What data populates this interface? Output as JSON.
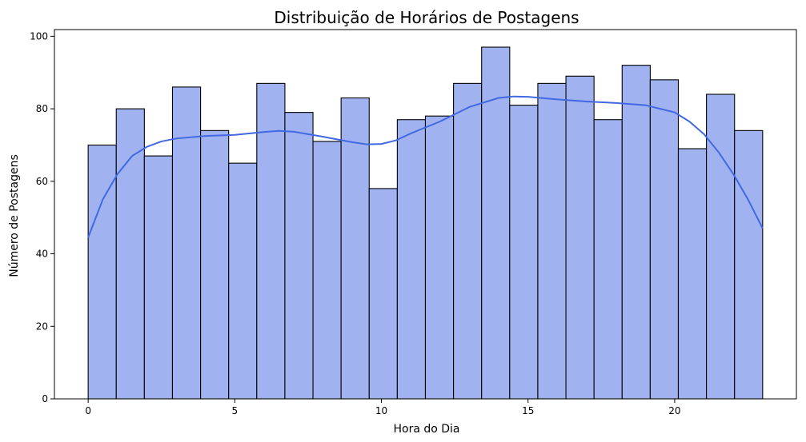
{
  "chart_data": {
    "type": "bar",
    "title": "Distribuição de Horários de Postagens",
    "xlabel": "Hora do Dia",
    "ylabel": "Número de Postagens",
    "xlim": [
      -1.15,
      24.15
    ],
    "ylim": [
      0,
      101.85
    ],
    "bin_width": 0.9583,
    "bin_start": 0,
    "bins": 24,
    "values": [
      70,
      80,
      67,
      86,
      74,
      65,
      87,
      79,
      71,
      83,
      58,
      77,
      78,
      87,
      97,
      81,
      87,
      89,
      77,
      92,
      88,
      69,
      84,
      74
    ],
    "x_ticks": [
      0,
      5,
      10,
      15,
      20
    ],
    "x_tick_labels": [
      "0",
      "5",
      "10",
      "15",
      "20"
    ],
    "y_ticks": [
      0,
      20,
      40,
      60,
      80,
      100
    ],
    "y_tick_labels": [
      "0",
      "20",
      "40",
      "60",
      "80",
      "100"
    ],
    "kde": {
      "x": [
        0,
        0.5,
        1,
        1.5,
        2,
        2.5,
        3,
        4,
        5,
        6,
        6.5,
        7,
        8,
        9,
        9.5,
        10,
        10.5,
        11,
        12,
        13,
        14,
        14.5,
        15,
        16,
        17,
        18,
        19,
        20,
        20.5,
        21,
        21.5,
        22,
        22.5,
        23
      ],
      "y": [
        44.5,
        55,
        62,
        67,
        69.5,
        71,
        71.8,
        72.5,
        72.8,
        73.6,
        73.9,
        73.7,
        72.3,
        70.8,
        70.2,
        70.3,
        71.3,
        73.2,
        76.5,
        80.5,
        83,
        83.4,
        83.3,
        82.6,
        82,
        81.6,
        81,
        79,
        76.5,
        73,
        68,
        62,
        55,
        47
      ]
    },
    "grid": false,
    "bar_color": "#a0b2ef",
    "bar_edge_color": "#000000",
    "kde_color": "#4169e1"
  }
}
